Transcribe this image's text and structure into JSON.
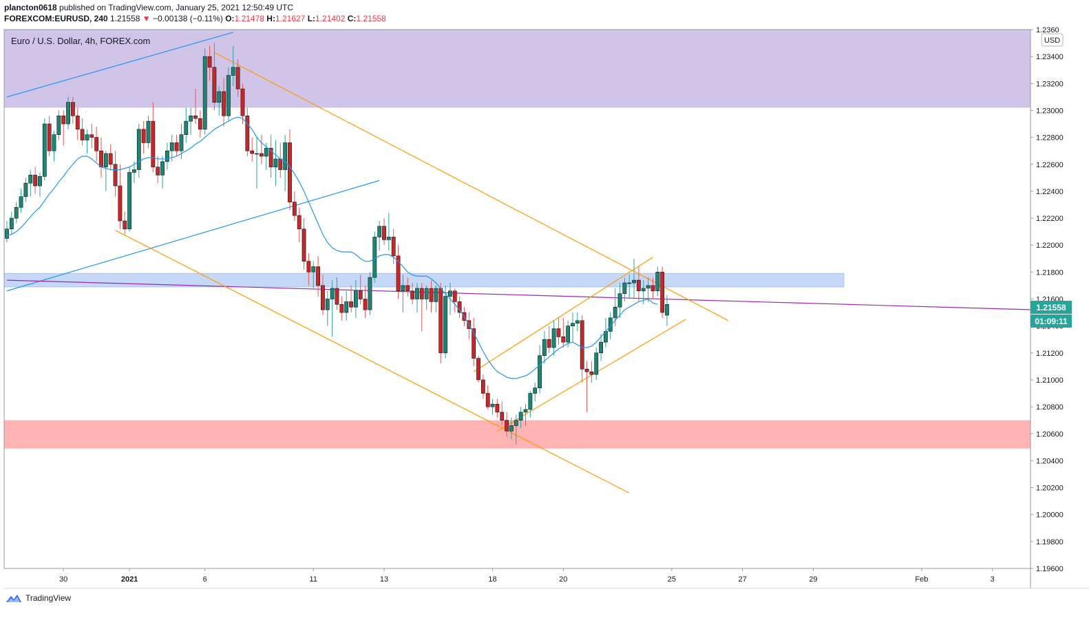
{
  "header": {
    "user": "plancton0618",
    "published_text": "published on TradingView.com, January 25, 2021 12:50:49 UTC",
    "symbol": "FOREXCOM:EURUSD, 240",
    "last": "1.21558",
    "change": "−0.00138 (−0.11%)",
    "o_label": "O:",
    "o_value": "1.21478",
    "h_label": "H:",
    "h_value": "1.21627",
    "l_label": "L:",
    "l_value": "1.21402",
    "c_label": "C:",
    "c_value": "1.21558"
  },
  "legend": {
    "title": "Euro / U.S. Dollar, 4h, FOREX.com"
  },
  "currency_badge": "USD",
  "price_tag": "1.21558",
  "countdown_tag": "01:09:11",
  "footer": {
    "brand": "TradingView"
  },
  "colors": {
    "up": "#26a69a",
    "down": "#ef5350",
    "up_body": "#1d8572",
    "down_body": "#c62828",
    "ma": "#2196f3",
    "purple_zone": "#d1c4e9",
    "red_zone": "#ffb3b3",
    "blue_zone": "#c6d8f7",
    "channel": "#ff9800",
    "trend_blue": "#2196f3",
    "trend_purple": "#9c27b0",
    "price_tag_bg": "#26a69a"
  },
  "chart_data": {
    "type": "candlestick",
    "y_axis": {
      "min": 1.196,
      "max": 1.236,
      "ticks": [
        "1.19600",
        "1.19800",
        "1.20000",
        "1.20200",
        "1.20400",
        "1.20600",
        "1.20800",
        "1.21000",
        "1.21200",
        "1.21400",
        "1.21600",
        "1.21800",
        "1.22000",
        "1.22200",
        "1.22400",
        "1.22600",
        "1.22800",
        "1.23000",
        "1.23200",
        "1.23400",
        "1.2360"
      ]
    },
    "x_axis": {
      "ticks": [
        {
          "label": "30",
          "bar": 12
        },
        {
          "label": "2021",
          "bar": 26,
          "bold": true
        },
        {
          "label": "6",
          "bar": 42
        },
        {
          "label": "11",
          "bar": 65
        },
        {
          "label": "13",
          "bar": 80
        },
        {
          "label": "18",
          "bar": 103
        },
        {
          "label": "20",
          "bar": 118
        },
        {
          "label": "25",
          "bar": 141
        },
        {
          "label": "27",
          "bar": 156
        },
        {
          "label": "29",
          "bar": 171
        },
        {
          "label": "Feb",
          "bar": 194
        },
        {
          "label": "3",
          "bar": 209
        }
      ]
    },
    "zones": [
      {
        "name": "supply",
        "from": 1.2302,
        "to": 1.2362
      },
      {
        "name": "pivot",
        "from": 1.2169,
        "to": 1.2179
      },
      {
        "name": "demand",
        "from": 1.2049,
        "to": 1.207
      }
    ],
    "trendlines": [
      {
        "name": "blue-upper",
        "color": "trend_blue",
        "p1": [
          0,
          1.231
        ],
        "p2": [
          48,
          1.2358
        ]
      },
      {
        "name": "blue-lower",
        "color": "trend_blue",
        "p1": [
          0,
          1.2166
        ],
        "p2": [
          79,
          1.2248
        ]
      },
      {
        "name": "purple",
        "color": "trend_purple",
        "p1": [
          0,
          1.2174
        ],
        "p2": [
          218,
          1.2152
        ]
      },
      {
        "name": "orange-upper",
        "color": "channel",
        "p1": [
          44,
          1.2343
        ],
        "p2": [
          153,
          1.2144
        ]
      },
      {
        "name": "orange-lower",
        "color": "channel",
        "p1": [
          23,
          1.2211
        ],
        "p2": [
          132,
          1.2016
        ]
      },
      {
        "name": "orange-rising-upper",
        "color": "channel",
        "p1": [
          99,
          1.2106
        ],
        "p2": [
          137,
          1.2191
        ]
      },
      {
        "name": "orange-rising-lower",
        "color": "channel",
        "p1": [
          104,
          1.2062
        ],
        "p2": [
          144,
          1.2145
        ]
      }
    ],
    "ohlc": [
      [
        1.2205,
        1.2218,
        1.2202,
        1.2212
      ],
      [
        1.2212,
        1.2225,
        1.2208,
        1.222
      ],
      [
        1.222,
        1.2232,
        1.2216,
        1.2228
      ],
      [
        1.2228,
        1.2242,
        1.2224,
        1.2236
      ],
      [
        1.2236,
        1.225,
        1.2232,
        1.2246
      ],
      [
        1.2246,
        1.2256,
        1.2236,
        1.2252
      ],
      [
        1.2252,
        1.2258,
        1.2238,
        1.2244
      ],
      [
        1.2244,
        1.2254,
        1.2236,
        1.2251
      ],
      [
        1.2251,
        1.2294,
        1.2248,
        1.229
      ],
      [
        1.229,
        1.2296,
        1.2266,
        1.227
      ],
      [
        1.227,
        1.2285,
        1.2262,
        1.2282
      ],
      [
        1.2282,
        1.23,
        1.2278,
        1.2296
      ],
      [
        1.2296,
        1.23,
        1.2274,
        1.229
      ],
      [
        1.229,
        1.231,
        1.2286,
        1.2306
      ],
      [
        1.2306,
        1.231,
        1.229,
        1.2296
      ],
      [
        1.2296,
        1.2302,
        1.2278,
        1.2286
      ],
      [
        1.2286,
        1.2294,
        1.2274,
        1.2278
      ],
      [
        1.2278,
        1.2286,
        1.2268,
        1.2282
      ],
      [
        1.2282,
        1.229,
        1.2272,
        1.228
      ],
      [
        1.228,
        1.2288,
        1.2262,
        1.227
      ],
      [
        1.227,
        1.228,
        1.225,
        1.2258
      ],
      [
        1.2258,
        1.227,
        1.224,
        1.2268
      ],
      [
        1.2268,
        1.2275,
        1.2256,
        1.226
      ],
      [
        1.226,
        1.227,
        1.2236,
        1.2244
      ],
      [
        1.2244,
        1.226,
        1.2212,
        1.2218
      ],
      [
        1.2218,
        1.2225,
        1.2208,
        1.2212
      ],
      [
        1.2212,
        1.2258,
        1.221,
        1.2254
      ],
      [
        1.2254,
        1.2262,
        1.2246,
        1.2256
      ],
      [
        1.2256,
        1.229,
        1.225,
        1.2286
      ],
      [
        1.2286,
        1.2292,
        1.2268,
        1.2276
      ],
      [
        1.2276,
        1.2296,
        1.2272,
        1.2292
      ],
      [
        1.2292,
        1.2306,
        1.2254,
        1.2258
      ],
      [
        1.2258,
        1.2266,
        1.2246,
        1.2252
      ],
      [
        1.2252,
        1.2266,
        1.2242,
        1.2262
      ],
      [
        1.2262,
        1.2276,
        1.2256,
        1.227
      ],
      [
        1.227,
        1.2282,
        1.2262,
        1.2276
      ],
      [
        1.2276,
        1.2282,
        1.2266,
        1.227
      ],
      [
        1.227,
        1.229,
        1.2264,
        1.2282
      ],
      [
        1.2282,
        1.2302,
        1.2276,
        1.2292
      ],
      [
        1.2292,
        1.2302,
        1.2282,
        1.2296
      ],
      [
        1.2296,
        1.2316,
        1.229,
        1.2294
      ],
      [
        1.2294,
        1.23,
        1.228,
        1.2286
      ],
      [
        1.2286,
        1.2346,
        1.2282,
        1.234
      ],
      [
        1.234,
        1.2348,
        1.2322,
        1.2332
      ],
      [
        1.2332,
        1.235,
        1.23,
        1.2306
      ],
      [
        1.2306,
        1.2318,
        1.2296,
        1.2314
      ],
      [
        1.2314,
        1.2324,
        1.2288,
        1.2296
      ],
      [
        1.2296,
        1.2332,
        1.2292,
        1.2326
      ],
      [
        1.2326,
        1.2348,
        1.2318,
        1.2332
      ],
      [
        1.2332,
        1.2338,
        1.231,
        1.2316
      ],
      [
        1.2316,
        1.232,
        1.229,
        1.2296
      ],
      [
        1.2296,
        1.2302,
        1.2266,
        1.227
      ],
      [
        1.227,
        1.228,
        1.2262,
        1.2268
      ],
      [
        1.2268,
        1.228,
        1.2242,
        1.2268
      ],
      [
        1.2268,
        1.2282,
        1.226,
        1.2266
      ],
      [
        1.2266,
        1.2276,
        1.2256,
        1.2272
      ],
      [
        1.2272,
        1.2282,
        1.225,
        1.2258
      ],
      [
        1.2258,
        1.2278,
        1.2244,
        1.2264
      ],
      [
        1.2264,
        1.2276,
        1.225,
        1.2256
      ],
      [
        1.2256,
        1.2282,
        1.224,
        1.2276
      ],
      [
        1.2276,
        1.2286,
        1.2226,
        1.2232
      ],
      [
        1.2232,
        1.224,
        1.2218,
        1.2222
      ],
      [
        1.2222,
        1.2228,
        1.2202,
        1.2212
      ],
      [
        1.2212,
        1.222,
        1.2182,
        1.2188
      ],
      [
        1.2188,
        1.2194,
        1.217,
        1.218
      ],
      [
        1.218,
        1.2188,
        1.2168,
        1.2184
      ],
      [
        1.2184,
        1.2192,
        1.2162,
        1.217
      ],
      [
        1.217,
        1.2178,
        1.2148,
        1.2152
      ],
      [
        1.2152,
        1.2166,
        1.214,
        1.216
      ],
      [
        1.216,
        1.2174,
        1.2132,
        1.2168
      ],
      [
        1.2168,
        1.2176,
        1.2152,
        1.2156
      ],
      [
        1.2156,
        1.2162,
        1.2144,
        1.215
      ],
      [
        1.215,
        1.2166,
        1.2144,
        1.2158
      ],
      [
        1.2158,
        1.217,
        1.215,
        1.2154
      ],
      [
        1.2154,
        1.2174,
        1.2146,
        1.2166
      ],
      [
        1.2166,
        1.2178,
        1.2156,
        1.216
      ],
      [
        1.216,
        1.217,
        1.2146,
        1.2152
      ],
      [
        1.2152,
        1.218,
        1.2148,
        1.2176
      ],
      [
        1.2176,
        1.221,
        1.2172,
        1.2206
      ],
      [
        1.2206,
        1.2218,
        1.2196,
        1.2214
      ],
      [
        1.2214,
        1.222,
        1.22,
        1.2204
      ],
      [
        1.2204,
        1.2224,
        1.2196,
        1.2206
      ],
      [
        1.2206,
        1.2212,
        1.2186,
        1.2192
      ],
      [
        1.2192,
        1.22,
        1.216,
        1.2166
      ],
      [
        1.2166,
        1.2178,
        1.215,
        1.217
      ],
      [
        1.217,
        1.2176,
        1.2162,
        1.2166
      ],
      [
        1.2166,
        1.2172,
        1.2156,
        1.216
      ],
      [
        1.216,
        1.2172,
        1.215,
        1.2168
      ],
      [
        1.2168,
        1.2172,
        1.2136,
        1.216
      ],
      [
        1.216,
        1.217,
        1.2152,
        1.2168
      ],
      [
        1.2168,
        1.2174,
        1.215,
        1.2158
      ],
      [
        1.2158,
        1.217,
        1.215,
        1.2168
      ],
      [
        1.2168,
        1.2172,
        1.2112,
        1.212
      ],
      [
        1.212,
        1.217,
        1.2116,
        1.2162
      ],
      [
        1.2162,
        1.2172,
        1.2148,
        1.2166
      ],
      [
        1.2166,
        1.2168,
        1.215,
        1.2158
      ],
      [
        1.2158,
        1.2162,
        1.2146,
        1.215
      ],
      [
        1.215,
        1.2154,
        1.214,
        1.2144
      ],
      [
        1.2144,
        1.215,
        1.213,
        1.2138
      ],
      [
        1.2138,
        1.2146,
        1.211,
        1.2116
      ],
      [
        1.2116,
        1.2118,
        1.2098,
        1.21
      ],
      [
        1.21,
        1.2104,
        1.2086,
        1.209
      ],
      [
        1.209,
        1.2096,
        1.2078,
        1.208
      ],
      [
        1.208,
        1.2086,
        1.2074,
        1.2082
      ],
      [
        1.2082,
        1.2086,
        1.2072,
        1.2076
      ],
      [
        1.2076,
        1.2084,
        1.2066,
        1.207
      ],
      [
        1.207,
        1.2076,
        1.2058,
        1.2062
      ],
      [
        1.2062,
        1.2072,
        1.2056,
        1.2066
      ],
      [
        1.2066,
        1.2074,
        1.2052,
        1.207
      ],
      [
        1.207,
        1.208,
        1.2064,
        1.2076
      ],
      [
        1.2076,
        1.2082,
        1.2066,
        1.2078
      ],
      [
        1.2078,
        1.2092,
        1.2072,
        1.209
      ],
      [
        1.209,
        1.2098,
        1.2084,
        1.2094
      ],
      [
        1.2094,
        1.2126,
        1.209,
        1.2118
      ],
      [
        1.2118,
        1.2136,
        1.2112,
        1.213
      ],
      [
        1.213,
        1.214,
        1.212,
        1.2124
      ],
      [
        1.2124,
        1.2144,
        1.2118,
        1.2138
      ],
      [
        1.2138,
        1.2146,
        1.2126,
        1.2132
      ],
      [
        1.2132,
        1.2146,
        1.2124,
        1.2128
      ],
      [
        1.2128,
        1.2144,
        1.2124,
        1.214
      ],
      [
        1.214,
        1.215,
        1.2128,
        1.2142
      ],
      [
        1.2142,
        1.215,
        1.2136,
        1.2144
      ],
      [
        1.2144,
        1.2148,
        1.2098,
        1.2108
      ],
      [
        1.2108,
        1.2114,
        1.2076,
        1.2106
      ],
      [
        1.2106,
        1.2114,
        1.2098,
        1.2104
      ],
      [
        1.2104,
        1.2124,
        1.21,
        1.212
      ],
      [
        1.212,
        1.2134,
        1.2114,
        1.2128
      ],
      [
        1.2128,
        1.2146,
        1.2124,
        1.2136
      ],
      [
        1.2136,
        1.215,
        1.213,
        1.2146
      ],
      [
        1.2146,
        1.2168,
        1.214,
        1.2154
      ],
      [
        1.2154,
        1.2172,
        1.2146,
        1.2164
      ],
      [
        1.2164,
        1.2176,
        1.2158,
        1.2172
      ],
      [
        1.2172,
        1.2178,
        1.216,
        1.2172
      ],
      [
        1.2172,
        1.219,
        1.216,
        1.2174
      ],
      [
        1.2174,
        1.2184,
        1.2158,
        1.2166
      ],
      [
        1.2166,
        1.2174,
        1.2156,
        1.2168
      ],
      [
        1.2168,
        1.2176,
        1.2158,
        1.217
      ],
      [
        1.217,
        1.2176,
        1.216,
        1.2166
      ],
      [
        1.2166,
        1.2184,
        1.2162,
        1.218
      ],
      [
        1.218,
        1.2184,
        1.2146,
        1.215
      ],
      [
        1.2148,
        1.2163,
        1.214,
        1.2156
      ]
    ],
    "ma": [
      1.2207,
      1.2208,
      1.221,
      1.2213,
      1.2217,
      1.2221,
      1.2225,
      1.2228,
      1.2233,
      1.2238,
      1.2242,
      1.2247,
      1.2251,
      1.2256,
      1.226,
      1.2264,
      1.2266,
      1.2266,
      1.2264,
      1.2261,
      1.2258,
      1.2257,
      1.2256,
      1.2256,
      1.2256,
      1.2257,
      1.2258,
      1.226,
      1.2262,
      1.2264,
      1.2265,
      1.2265,
      1.2264,
      1.2264,
      1.2264,
      1.2265,
      1.2266,
      1.2268,
      1.227,
      1.2272,
      1.2275,
      1.2277,
      1.228,
      1.2283,
      1.2286,
      1.2288,
      1.229,
      1.2292,
      1.2294,
      1.2295,
      1.2294,
      1.229,
      1.2286,
      1.228,
      1.2276,
      1.2273,
      1.227,
      1.2267,
      1.2264,
      1.2262,
      1.2258,
      1.2253,
      1.2247,
      1.224,
      1.2232,
      1.2224,
      1.2216,
      1.2208,
      1.2202,
      1.2198,
      1.2196,
      1.2195,
      1.2195,
      1.2195,
      1.2193,
      1.219,
      1.2188,
      1.2188,
      1.219,
      1.2192,
      1.2193,
      1.2193,
      1.2191,
      1.2188,
      1.2184,
      1.218,
      1.2178,
      1.2177,
      1.2177,
      1.2177,
      1.2175,
      1.2172,
      1.2168,
      1.2164,
      1.216,
      1.2156,
      1.2152,
      1.2147,
      1.2141,
      1.2135,
      1.2128,
      1.2121,
      1.2115,
      1.211,
      1.2106,
      1.2104,
      1.2102,
      1.2101,
      1.2101,
      1.2102,
      1.2103,
      1.2105,
      1.2108,
      1.2111,
      1.2114,
      1.2117,
      1.212,
      1.2123,
      1.2125,
      1.2127,
      1.2128,
      1.2126,
      1.2124,
      1.2124,
      1.2125,
      1.2128,
      1.2132,
      1.2136,
      1.214,
      1.2144,
      1.2148,
      1.2152,
      1.2154,
      1.2156,
      1.2158,
      1.2159,
      1.216,
      1.2157,
      1.2156
    ]
  }
}
